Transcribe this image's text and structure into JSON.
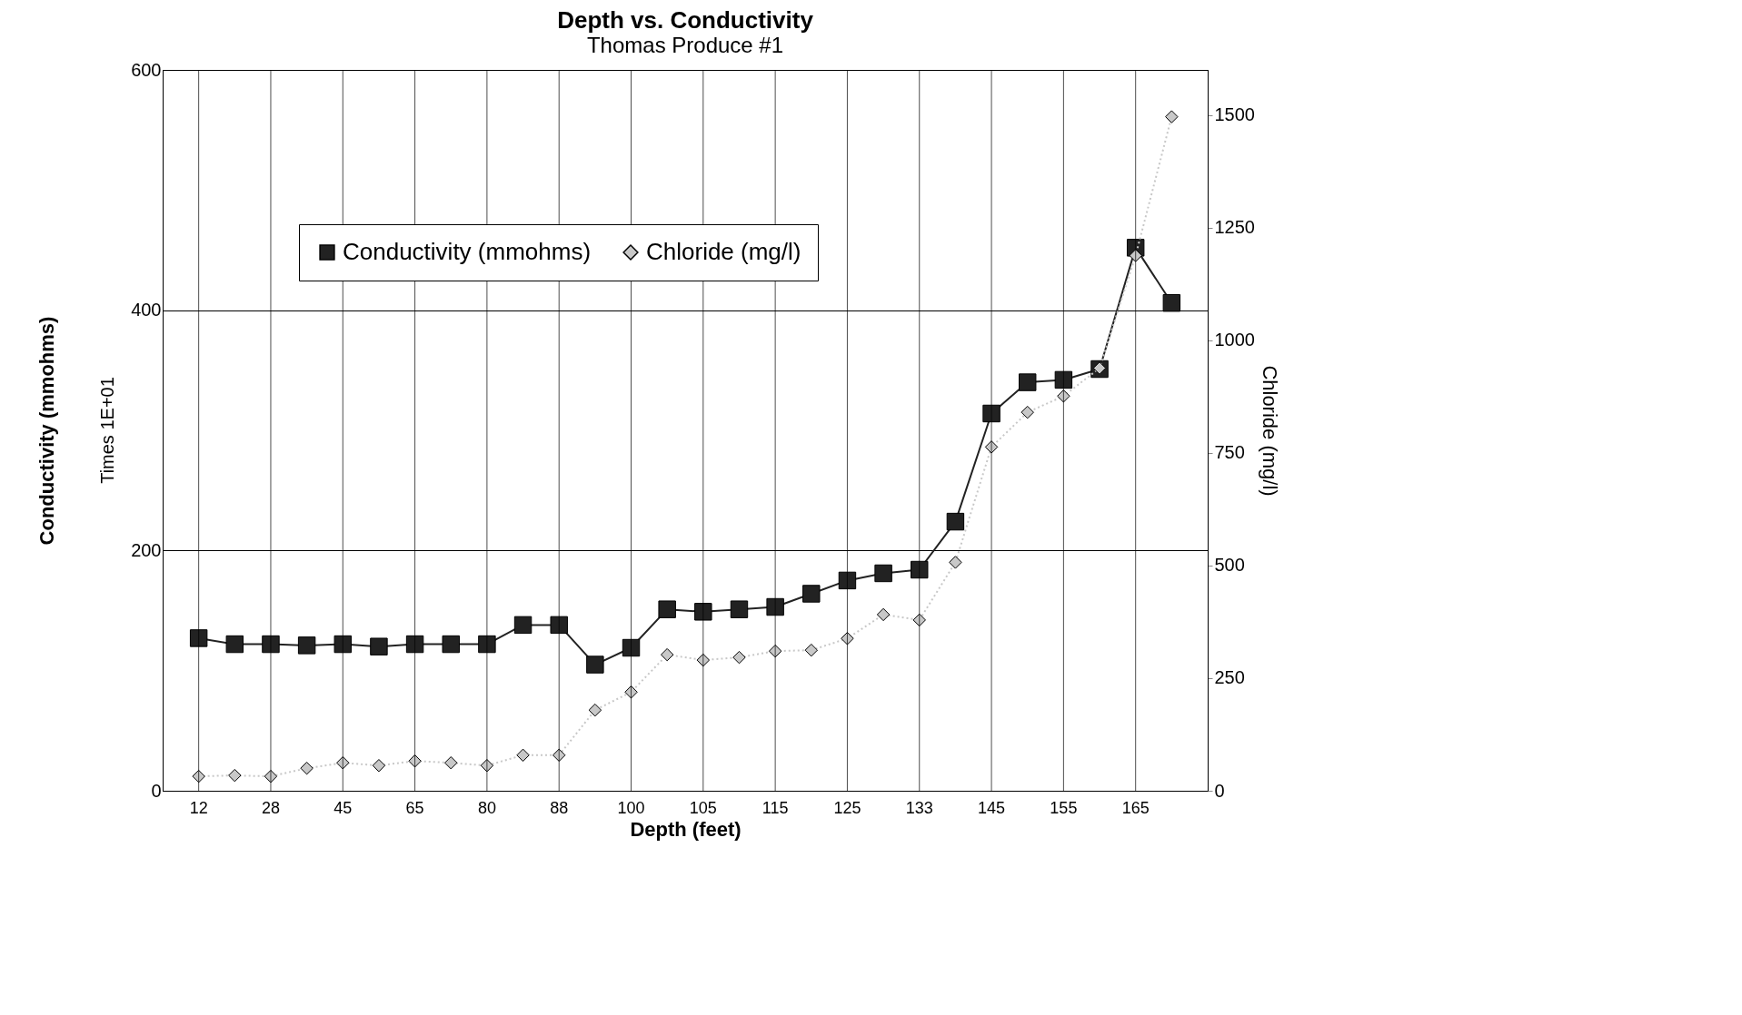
{
  "chart_data": {
    "type": "line",
    "title": "Depth vs. Conductivity",
    "subtitle": "Thomas Produce #1",
    "xlabel": "Depth (feet)",
    "ylabel": "Conductivity (mmohms)",
    "y2label": "Chloride (mg/l)",
    "annotations": [
      "Times 1E+01"
    ],
    "categories": [
      "12",
      null,
      "28",
      null,
      "45",
      null,
      "65",
      null,
      "80",
      null,
      "88",
      null,
      "100",
      null,
      "105",
      null,
      "115",
      null,
      "125",
      null,
      "133",
      null,
      "145",
      null,
      "155",
      null,
      "165",
      null
    ],
    "series": [
      {
        "name": "Conductivity (mmohms)",
        "color": "#222222",
        "marker": "square",
        "line_style": "solid",
        "values": [
          127,
          122,
          122,
          121,
          122,
          120,
          122,
          122,
          122,
          138,
          138,
          105,
          119,
          151,
          149,
          151,
          153,
          164,
          175,
          181,
          184,
          224,
          314,
          340,
          342,
          351,
          452,
          406
        ]
      },
      {
        "name": "Chloride (mg/l)",
        "color": "#c8c8c8",
        "marker": "diamond",
        "line_style": "dotted",
        "axis": "y2",
        "values": [
          32,
          34,
          32,
          50,
          62,
          56,
          66,
          62,
          56,
          79,
          79,
          179,
          219,
          302,
          290,
          296,
          310,
          312,
          338,
          391,
          379,
          507,
          763,
          840,
          876,
          938,
          1188,
          1496
        ]
      }
    ],
    "ylim": [
      0,
      600
    ],
    "yticks": [
      0,
      200,
      400,
      600
    ],
    "y2lim": [
      0,
      1600
    ],
    "y2ticks": [
      0,
      250,
      500,
      750,
      1000,
      1250,
      1500
    ],
    "grid": true,
    "legend": "top"
  }
}
